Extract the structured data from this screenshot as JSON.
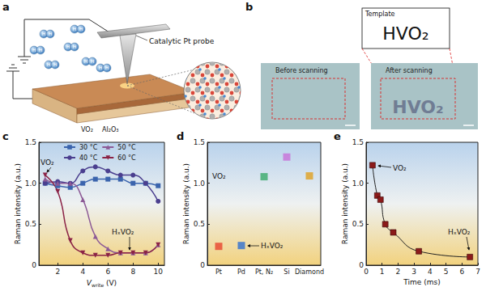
{
  "panel_labels": [
    "a",
    "b",
    "c",
    "d",
    "e"
  ],
  "schematic": {
    "probe": "Catalytic Pt probe",
    "film": "VO₂",
    "substrate": "Al₂O₃",
    "molecule_atom": "H"
  },
  "template": {
    "title": "Template",
    "text": "HVO₂"
  },
  "micrographs": [
    {
      "caption": "Before scanning"
    },
    {
      "caption": "After scanning",
      "pattern": "HVO₂"
    }
  ],
  "chart_data": [
    {
      "type": "line",
      "xlabel": [
        "V",
        "write",
        " (V)"
      ],
      "ylabel": "Raman intensity (a.u.)",
      "x": [
        1,
        2,
        3,
        4,
        5,
        6,
        7,
        8,
        9,
        10
      ],
      "series": [
        {
          "name": "30 °C",
          "color": "#3b64ad",
          "marker": "square",
          "values": [
            1.0,
            0.97,
            0.95,
            1.0,
            1.05,
            1.05,
            1.05,
            1.0,
            1.0,
            0.97
          ]
        },
        {
          "name": "40 °C",
          "color": "#4b3f8f",
          "marker": "circle",
          "values": [
            1.0,
            1.02,
            1.0,
            1.15,
            1.2,
            1.15,
            1.1,
            1.1,
            1.0,
            0.78
          ]
        },
        {
          "name": "50 °C",
          "color": "#8c5a96",
          "marker": "triangle",
          "values": [
            1.05,
            1.0,
            1.0,
            0.8,
            0.35,
            0.2,
            0.15,
            0.15,
            0.15,
            0.25
          ]
        },
        {
          "name": "60 °C",
          "color": "#8b2346",
          "marker": "triangle-down",
          "values": [
            1.1,
            0.9,
            0.3,
            0.15,
            0.12,
            0.12,
            0.15,
            0.15,
            0.15,
            0.25
          ]
        }
      ],
      "xlim": [
        0.5,
        10.5
      ],
      "xticks": [
        2,
        4,
        6,
        8,
        10
      ],
      "ylim": [
        0,
        1.5
      ],
      "yticks": [
        0,
        0.5,
        {
          "value": 1,
          "label": "1.0"
        },
        1.5
      ],
      "grid": false,
      "legend": "top",
      "annotations": [
        "VO₂",
        "HₓVO₂"
      ]
    },
    {
      "type": "scatter",
      "ylabel": "Raman intensity (a.u.)",
      "categories": [
        "Pt",
        "Pd",
        "Pt, N₂",
        "Si",
        "Diamond"
      ],
      "values": [
        0.23,
        0.24,
        1.08,
        1.32,
        1.09
      ],
      "colors": [
        "#e8452e",
        "#2f6fd0",
        "#3aaa6a",
        "#c870d8",
        "#e0a020"
      ],
      "marker": "square",
      "ylim": [
        0,
        1.5
      ],
      "yticks": [
        0,
        0.5,
        {
          "value": 1,
          "label": "1.0"
        },
        1.5
      ],
      "grid": false,
      "annotations": [
        "VO₂",
        "HₓVO₂"
      ]
    },
    {
      "type": "line",
      "xlabel": "Time (ms)",
      "ylabel": "Raman intensity (a.u.)",
      "x": [
        0.4,
        0.7,
        0.9,
        1.2,
        1.7,
        3.3,
        6.5
      ],
      "values": [
        1.22,
        0.85,
        0.8,
        0.5,
        0.4,
        0.17,
        0.1
      ],
      "color": "#8b1a1a",
      "marker": "square",
      "xlim": [
        0,
        7
      ],
      "xticks": [
        0,
        1,
        2,
        3,
        4,
        5,
        6,
        7
      ],
      "ylim": [
        0,
        1.5
      ],
      "yticks": [
        0,
        0.5,
        {
          "value": 1,
          "label": "1.0"
        },
        1.5
      ],
      "grid": false,
      "annotations": [
        "VO₂",
        "HₓVO₂"
      ]
    }
  ]
}
